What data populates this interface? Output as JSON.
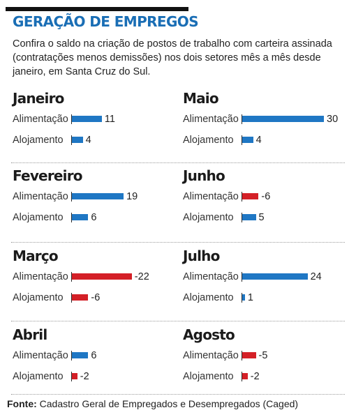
{
  "title": "GERAÇÃO DE EMPREGOS",
  "subtitle": "Confira o saldo na criação de postos de trabalho com carteira assinada (contratações menos demissões) nos dois setores mês a mês desde janeiro, em Santa Cruz do Sul.",
  "source": {
    "label": "Fonte:",
    "text": " Cadastro Geral de Empregados e Desempregados (Caged)"
  },
  "colors": {
    "positive": "#1f77c4",
    "negative": "#d42027",
    "title": "#1a6eb5"
  },
  "chart_data": {
    "type": "bar",
    "orientation": "horizontal",
    "title": "GERAÇÃO DE EMPREGOS",
    "categories": [
      "Alimentação",
      "Alojamento"
    ],
    "panels": [
      {
        "month": "Janeiro",
        "rows": [
          {
            "label": "Alimentação",
            "value": 11,
            "value_text": "11"
          },
          {
            "label": "Alojamento",
            "value": 4,
            "value_text": "4"
          }
        ]
      },
      {
        "month": "Maio",
        "rows": [
          {
            "label": "Alimentação",
            "value": 30,
            "value_text": "30"
          },
          {
            "label": "Alojamento",
            "value": 4,
            "value_text": "4"
          }
        ]
      },
      {
        "month": "Fevereiro",
        "rows": [
          {
            "label": "Alimentação",
            "value": 19,
            "value_text": "19"
          },
          {
            "label": "Alojamento",
            "value": 6,
            "value_text": "6"
          }
        ]
      },
      {
        "month": "Junho",
        "rows": [
          {
            "label": "Alimentação",
            "value": -6,
            "value_text": "-6"
          },
          {
            "label": "Alojamento",
            "value": 5,
            "value_text": "5"
          }
        ]
      },
      {
        "month": "Março",
        "rows": [
          {
            "label": "Alimentação",
            "value": -22,
            "value_text": "-22"
          },
          {
            "label": "Alojamento",
            "value": -6,
            "value_text": "-6"
          }
        ]
      },
      {
        "month": "Julho",
        "rows": [
          {
            "label": "Alimentação",
            "value": 24,
            "value_text": "24"
          },
          {
            "label": "Alojamento",
            "value": 1,
            "value_text": "1"
          }
        ]
      },
      {
        "month": "Abril",
        "rows": [
          {
            "label": "Alimentação",
            "value": 6,
            "value_text": "6"
          },
          {
            "label": "Alojamento",
            "value": -2,
            "value_text": "-2"
          }
        ]
      },
      {
        "month": "Agosto",
        "rows": [
          {
            "label": "Alimentação",
            "value": -5,
            "value_text": "-5"
          },
          {
            "label": "Alojamento",
            "value": -2,
            "value_text": "-2"
          }
        ]
      }
    ]
  }
}
